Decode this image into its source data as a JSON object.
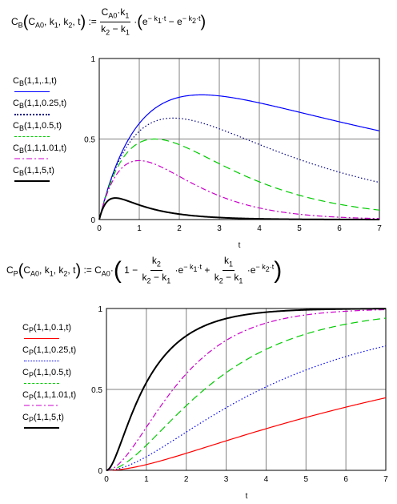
{
  "equation_b": {
    "lhs": "C_B(C_A0, k1, k2, t) :=",
    "numerator": "C_A0·k1",
    "denominator": "k2 − k1",
    "exp_term_1": "e^(−k1·t)",
    "exp_term_2": "e^(−k2·t)"
  },
  "equation_p": {
    "lhs": "C_P(C_A0, k1, k2, t) := C_A0·",
    "frac1_num": "k2",
    "frac1_den": "k2 − k1",
    "frac2_num": "k1",
    "frac2_den": "k2 − k1",
    "one": "1"
  },
  "colors": {
    "k2_0_1": "#0000ff",
    "k2_0_25": "#000080",
    "k2_0_5": "#00cc00",
    "k2_1_01": "#cc00cc",
    "k2_5": "#000000",
    "p_k2_0_1": "#ff0000"
  },
  "chart_data": [
    {
      "type": "line",
      "function": "C_B(C_A0,k1,k2,t) = C_A0*k1/(k2-k1)*(exp(-k1*t)-exp(-k2*t))",
      "xlabel": "t",
      "xlim": [
        0,
        7
      ],
      "ylim": [
        0,
        1
      ],
      "x_ticks": [
        "0",
        "1",
        "2",
        "3",
        "4",
        "5",
        "6",
        "7"
      ],
      "y_ticks": [
        "0",
        "0.5",
        "1"
      ],
      "grid": true,
      "legend_placement": "left",
      "series": [
        {
          "name": "C_B(1,1,.1,t)",
          "CA0": 1,
          "k1": 1,
          "k2": 0.1,
          "style": "solid",
          "color": "#0000ff"
        },
        {
          "name": "C_B(1,1,0.25,t)",
          "CA0": 1,
          "k1": 1,
          "k2": 0.25,
          "style": "dotted",
          "color": "#000080"
        },
        {
          "name": "C_B(1,1,0.5,t)",
          "CA0": 1,
          "k1": 1,
          "k2": 0.5,
          "style": "dashed",
          "color": "#00cc00"
        },
        {
          "name": "C_B(1,1,1.01,t)",
          "CA0": 1,
          "k1": 1,
          "k2": 1.01,
          "style": "dashdot",
          "color": "#cc00cc"
        },
        {
          "name": "C_B(1,1,5,t)",
          "CA0": 1,
          "k1": 1,
          "k2": 5,
          "style": "solid-thick",
          "color": "#000000"
        }
      ]
    },
    {
      "type": "line",
      "function": "C_P(C_A0,k1,k2,t) = C_A0*(1 - k2/(k2-k1)*exp(-k1*t) + k1/(k2-k1)*exp(-k2*t))",
      "xlabel": "t",
      "xlim": [
        0,
        7
      ],
      "ylim": [
        0,
        1
      ],
      "x_ticks": [
        "0",
        "1",
        "2",
        "3",
        "4",
        "5",
        "6",
        "7"
      ],
      "y_ticks": [
        "0",
        "0.5",
        "1"
      ],
      "grid": true,
      "legend_placement": "left",
      "series": [
        {
          "name": "C_P(1,1,0.1,t)",
          "CA0": 1,
          "k1": 1,
          "k2": 0.1,
          "style": "solid",
          "color": "#ff0000"
        },
        {
          "name": "C_P(1,1,0.25,t)",
          "CA0": 1,
          "k1": 1,
          "k2": 0.25,
          "style": "dotted",
          "color": "#0000ff"
        },
        {
          "name": "C_P(1,1,0.5,t)",
          "CA0": 1,
          "k1": 1,
          "k2": 0.5,
          "style": "dashed",
          "color": "#00cc00"
        },
        {
          "name": "C_P(1,1,1.01,t)",
          "CA0": 1,
          "k1": 1,
          "k2": 1.01,
          "style": "dashdot",
          "color": "#cc00cc"
        },
        {
          "name": "C_P(1,1,5,t)",
          "CA0": 1,
          "k1": 1,
          "k2": 5,
          "style": "solid-thick",
          "color": "#000000"
        }
      ]
    }
  ]
}
